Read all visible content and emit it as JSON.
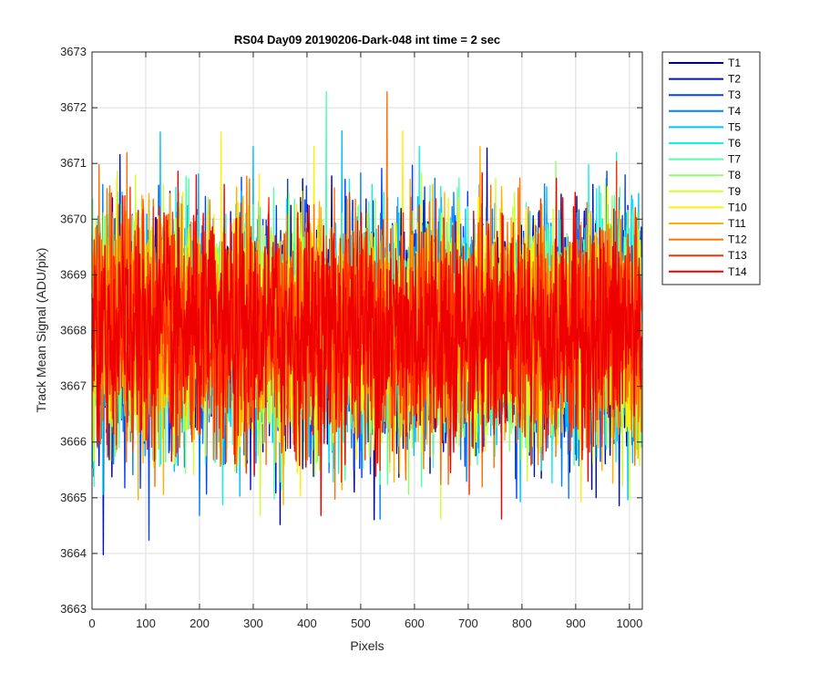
{
  "chart_data": {
    "type": "line",
    "title": "RS04 Day09 20190206-Dark-048 int time = 2 sec",
    "xlabel": "Pixels",
    "ylabel": "Track Mean Signal (ADU/pix)",
    "xlim": [
      0,
      1024
    ],
    "ylim": [
      3663,
      3673
    ],
    "xticks": [
      0,
      100,
      200,
      300,
      400,
      500,
      600,
      700,
      800,
      900,
      1000
    ],
    "yticks": [
      3663,
      3664,
      3665,
      3666,
      3667,
      3668,
      3669,
      3670,
      3671,
      3672,
      3673
    ],
    "grid": true,
    "legend_position": "outside-top-right",
    "n_points": 1024,
    "series": [
      {
        "name": "T1",
        "color": "#00008f",
        "mean": 3668.0,
        "spread": 2.0
      },
      {
        "name": "T2",
        "color": "#0011c4",
        "mean": 3668.0,
        "spread": 2.0
      },
      {
        "name": "T3",
        "color": "#0040ff",
        "mean": 3668.0,
        "spread": 2.0
      },
      {
        "name": "T4",
        "color": "#0080ff",
        "mean": 3668.0,
        "spread": 2.0
      },
      {
        "name": "T5",
        "color": "#00bfff",
        "mean": 3668.0,
        "spread": 2.0
      },
      {
        "name": "T6",
        "color": "#10f0ef",
        "mean": 3668.0,
        "spread": 2.0
      },
      {
        "name": "T7",
        "color": "#50ffaf",
        "mean": 3668.0,
        "spread": 2.0
      },
      {
        "name": "T8",
        "color": "#8fff70",
        "mean": 3668.0,
        "spread": 2.0
      },
      {
        "name": "T9",
        "color": "#cfff30",
        "mean": 3668.0,
        "spread": 2.0
      },
      {
        "name": "T10",
        "color": "#ffef00",
        "mean": 3668.0,
        "spread": 2.0
      },
      {
        "name": "T11",
        "color": "#ffb000",
        "mean": 3668.0,
        "spread": 2.0
      },
      {
        "name": "T12",
        "color": "#ff7000",
        "mean": 3668.0,
        "spread": 2.0
      },
      {
        "name": "T13",
        "color": "#ff3000",
        "mean": 3668.0,
        "spread": 2.0
      },
      {
        "name": "T14",
        "color": "#ef0000",
        "mean": 3668.0,
        "spread": 2.0
      }
    ]
  }
}
